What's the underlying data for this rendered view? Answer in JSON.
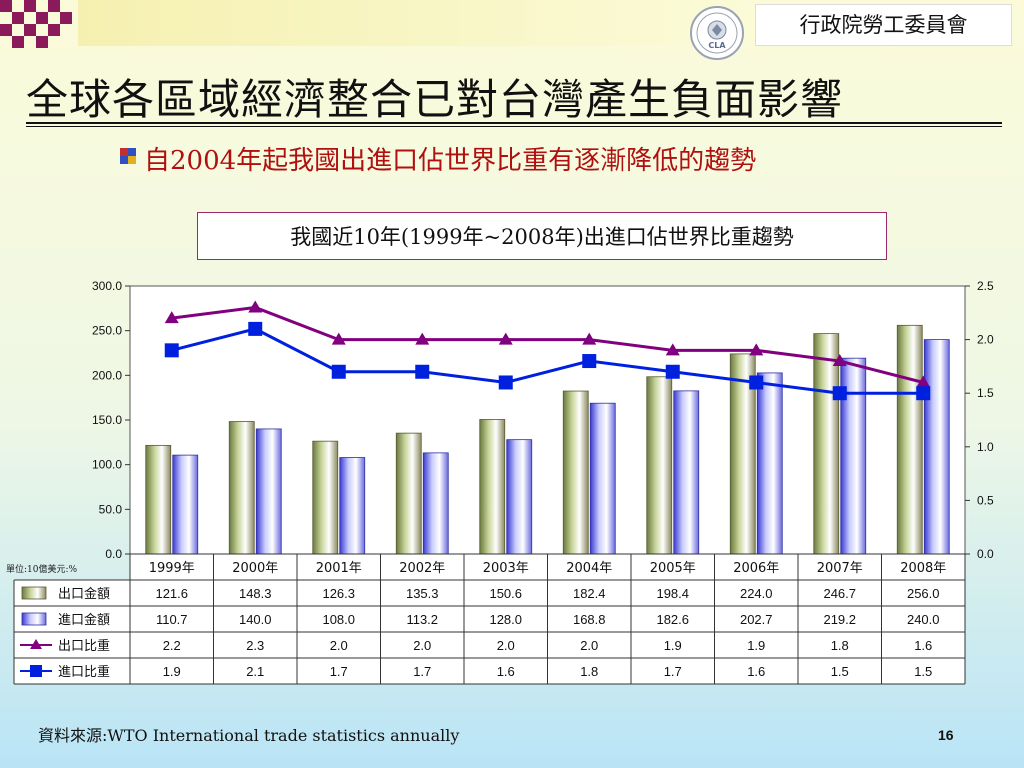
{
  "header": {
    "council_name": "行政院勞工委員會",
    "logo_text": "CLA"
  },
  "slide": {
    "title": "全球各區域經濟整合已對台灣產生負面影響",
    "subtitle": "自2004年起我國出進口佔世界比重有逐漸降低的趨勢",
    "source": "資料來源:WTO International trade statistics annually",
    "page_number": "16",
    "unit_note": "單位:10億美元:%"
  },
  "colors": {
    "export_bar": "#c8d49a",
    "import_bar": "#c8ccff",
    "export_line": "#800080",
    "import_line": "#0020e0"
  },
  "chart_data": {
    "type": "bar",
    "title": "我國近10年(1999年~2008年)出進口佔世界比重趨勢",
    "categories": [
      "1999年",
      "2000年",
      "2001年",
      "2002年",
      "2003年",
      "2004年",
      "2005年",
      "2006年",
      "2007年",
      "2008年"
    ],
    "y_left": {
      "ylim": [
        0,
        300
      ],
      "ticks": [
        "0.0",
        "50.0",
        "100.0",
        "150.0",
        "200.0",
        "250.0",
        "300.0"
      ]
    },
    "y_right": {
      "ylim": [
        0,
        2.5
      ],
      "ticks": [
        "0.0",
        "0.5",
        "1.0",
        "1.5",
        "2.0",
        "2.5"
      ]
    },
    "grid": false,
    "legend": "table-below",
    "series": [
      {
        "name": "出口金額",
        "kind": "bar",
        "axis": "left",
        "values": [
          121.6,
          148.3,
          126.3,
          135.3,
          150.6,
          182.4,
          198.4,
          224.0,
          246.7,
          256.0
        ],
        "labels": [
          "121.6",
          "148.3",
          "126.3",
          "135.3",
          "150.6",
          "182.4",
          "198.4",
          "224.0",
          "246.7",
          "256.0"
        ]
      },
      {
        "name": "進口金額",
        "kind": "bar",
        "axis": "left",
        "values": [
          110.7,
          140.0,
          108.0,
          113.2,
          128.0,
          168.8,
          182.6,
          202.7,
          219.2,
          240.0
        ],
        "labels": [
          "110.7",
          "140.0",
          "108.0",
          "113.2",
          "128.0",
          "168.8",
          "182.6",
          "202.7",
          "219.2",
          "240.0"
        ]
      },
      {
        "name": "出口比重",
        "kind": "line",
        "axis": "right",
        "marker": "triangle",
        "values": [
          2.2,
          2.3,
          2.0,
          2.0,
          2.0,
          2.0,
          1.9,
          1.9,
          1.8,
          1.6
        ],
        "labels": [
          "2.2",
          "2.3",
          "2.0",
          "2.0",
          "2.0",
          "2.0",
          "1.9",
          "1.9",
          "1.8",
          "1.6"
        ]
      },
      {
        "name": "進口比重",
        "kind": "line",
        "axis": "right",
        "marker": "square",
        "values": [
          1.9,
          2.1,
          1.7,
          1.7,
          1.6,
          1.8,
          1.7,
          1.6,
          1.5,
          1.5
        ],
        "labels": [
          "1.9",
          "2.1",
          "1.7",
          "1.7",
          "1.6",
          "1.8",
          "1.7",
          "1.6",
          "1.5",
          "1.5"
        ]
      }
    ]
  }
}
